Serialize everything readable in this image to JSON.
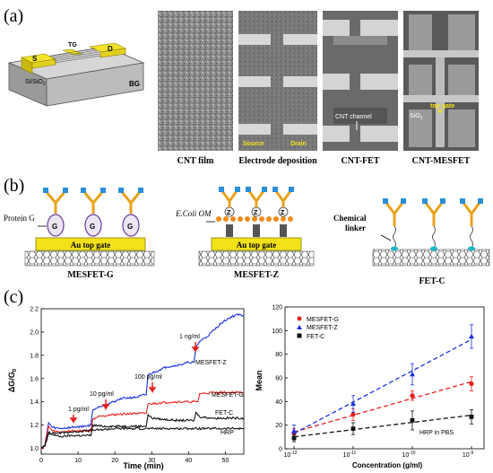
{
  "panel_a": {
    "label": "(a)",
    "device": {
      "s": "S",
      "tg": "TG",
      "d": "D",
      "substrate": "Si/SiO",
      "substrate_sub": "2",
      "bg": "BG"
    },
    "captions": [
      "CNT film",
      "Electrode deposition",
      "CNT-FET",
      "CNT-MESFET"
    ],
    "electrode_labels": {
      "source": "Source",
      "drain": "Drain"
    },
    "channel_label": "CNT channel",
    "top_gate_label": "top gate",
    "sio2": "SiO",
    "sio2_sub": "2"
  },
  "panel_b": {
    "label": "(b)",
    "protein_label": "Protein G",
    "g": "G",
    "gate_label": "Au top gate",
    "ecoli_label": "E.Coli OM",
    "z": "Z",
    "chemical_label": "Chemical",
    "linker_label": "linker",
    "captions": [
      "MESFET-G",
      "MESFET-Z",
      "FET-C"
    ]
  },
  "panel_c": {
    "label": "(c)",
    "colors": {
      "red": "#e8201c",
      "blue": "#1a2fe0",
      "black": "#111111"
    },
    "left_annotations": [
      "1 pg/ml",
      "10 pg/ml",
      "100 pg/ml",
      "1 ng/ml"
    ],
    "series_labels_left": [
      "MESFET-Z",
      "MESFET-G",
      "FET-C",
      "HRP"
    ],
    "legend": [
      "MESFET-G",
      "MESFET-Z",
      "FET-C"
    ],
    "note": "HRP in PBS",
    "y_sub": "0"
  },
  "chart_data": [
    {
      "type": "line",
      "xlabel": "Time (min)",
      "ylabel": "ΔG/G",
      "xlim": [
        0,
        55
      ],
      "ylim": [
        0.95,
        2.2
      ],
      "xticks": [
        0,
        10,
        20,
        30,
        40,
        50
      ],
      "yticks": [
        1.0,
        1.2,
        1.4,
        1.6,
        1.8,
        2.0,
        2.2
      ],
      "xtick_labels": [
        "0",
        "10",
        "20",
        "30",
        "40",
        "50"
      ],
      "ytick_labels": [
        "1.0",
        "1.2",
        "1.4",
        "1.6",
        "1.8",
        "2.0",
        "2.2"
      ],
      "series": [
        {
          "name": "MESFET-Z",
          "color": "#1a2fe0",
          "x": [
            0,
            1,
            2,
            3,
            5,
            8,
            12,
            13.5,
            14,
            16,
            18,
            22,
            26,
            28,
            28.5,
            29,
            31,
            34,
            38,
            40,
            41.5,
            42,
            43,
            45,
            47,
            49,
            51,
            53,
            55
          ],
          "y": [
            1.0,
            1.03,
            1.22,
            1.18,
            1.17,
            1.18,
            1.19,
            1.2,
            1.33,
            1.36,
            1.38,
            1.43,
            1.44,
            1.46,
            1.46,
            1.63,
            1.66,
            1.7,
            1.72,
            1.74,
            1.74,
            1.87,
            1.92,
            1.96,
            2.02,
            2.08,
            2.12,
            2.15,
            2.14
          ]
        },
        {
          "name": "MESFET-G",
          "color": "#e8201c",
          "x": [
            0,
            1,
            2,
            3,
            5,
            8,
            12,
            13.5,
            14,
            16,
            20,
            25,
            28,
            28.5,
            29,
            32,
            36,
            40,
            42,
            42.5,
            43,
            47,
            51,
            55
          ],
          "y": [
            1.0,
            1.02,
            1.19,
            1.15,
            1.14,
            1.15,
            1.15,
            1.15,
            1.25,
            1.28,
            1.29,
            1.3,
            1.3,
            1.3,
            1.38,
            1.39,
            1.4,
            1.4,
            1.4,
            1.4,
            1.47,
            1.48,
            1.48,
            1.48
          ]
        },
        {
          "name": "FET-C",
          "color": "#111111",
          "x": [
            0,
            1,
            2,
            3,
            5,
            8,
            12,
            13.5,
            14,
            16,
            20,
            25,
            28,
            28.5,
            29,
            30,
            33,
            37,
            41,
            41.5,
            42,
            43,
            47,
            51,
            55
          ],
          "y": [
            1.0,
            1.02,
            1.14,
            1.12,
            1.1,
            1.11,
            1.11,
            1.11,
            1.2,
            1.19,
            1.19,
            1.19,
            1.19,
            1.19,
            1.29,
            1.26,
            1.25,
            1.24,
            1.24,
            1.24,
            1.31,
            1.27,
            1.26,
            1.26,
            1.26
          ]
        },
        {
          "name": "HRP",
          "color": "#111111",
          "x": [
            0,
            1,
            2,
            4,
            8,
            12,
            16,
            20,
            25,
            30,
            35,
            40,
            45,
            50,
            55
          ],
          "y": [
            1.0,
            1.02,
            1.13,
            1.13,
            1.14,
            1.15,
            1.16,
            1.17,
            1.17,
            1.17,
            1.17,
            1.17,
            1.17,
            1.17,
            1.17
          ]
        }
      ]
    },
    {
      "type": "scatter",
      "xlabel": "Concentration (g/ml)",
      "ylabel": "Mean",
      "x_scale": "log",
      "xlim": [
        1e-12,
        1e-09
      ],
      "ylim": [
        0,
        120
      ],
      "yticks": [
        0,
        20,
        40,
        60,
        80,
        100,
        120
      ],
      "ytick_labels": [
        "0",
        "20",
        "40",
        "60",
        "80",
        "100",
        "120"
      ],
      "xtick_exponents": [
        "-12",
        "-11",
        "-10",
        "-9"
      ],
      "xtick_base": "10",
      "legend_position": "top-left",
      "series": [
        {
          "name": "MESFET-G",
          "color": "#e8201c",
          "marker": "circle",
          "x": [
            1e-12,
            1e-11,
            1e-10,
            1e-09
          ],
          "y": [
            13,
            29,
            45,
            55
          ],
          "err": [
            4,
            5,
            4,
            6
          ]
        },
        {
          "name": "MESFET-Z",
          "color": "#1a2fe0",
          "marker": "triangle",
          "x": [
            1e-12,
            1e-11,
            1e-10,
            1e-09
          ],
          "y": [
            15,
            38,
            63,
            95
          ],
          "err": [
            5,
            7,
            9,
            10
          ]
        },
        {
          "name": "FET-C",
          "color": "#111111",
          "marker": "square",
          "x": [
            1e-12,
            1e-11,
            1e-10,
            1e-09
          ],
          "y": [
            9,
            17,
            24,
            27
          ],
          "err": [
            3,
            5,
            8,
            6
          ]
        }
      ]
    }
  ]
}
